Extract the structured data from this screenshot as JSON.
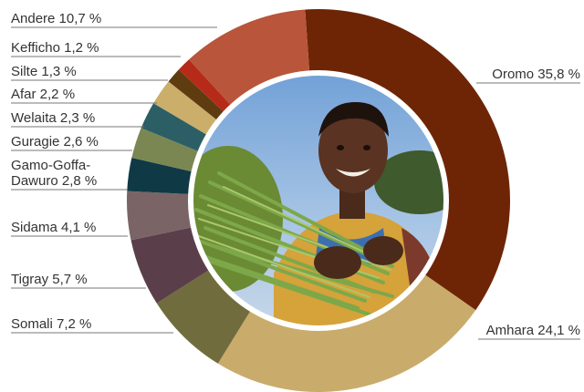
{
  "chart_data": {
    "type": "pie",
    "title": "",
    "categories": [
      "Oromo",
      "Amhara",
      "Somali",
      "Tigray",
      "Sidama",
      "Gamo-Goffa-Dawuro",
      "Guragie",
      "Welaita",
      "Afar",
      "Silte",
      "Kefficho",
      "Andere"
    ],
    "values": [
      35.8,
      24.1,
      7.2,
      5.7,
      4.1,
      2.8,
      2.6,
      2.3,
      2.2,
      1.3,
      1.2,
      10.7
    ],
    "labels": [
      "Oromo 35,8 %",
      "Amhara 24,1 %",
      "Somali 7,2 %",
      "Tigray 5,7 %",
      "Sidama 4,1 %",
      [
        "Gamo-Goffa-",
        "Dawuro 2,8 %"
      ],
      "Guragie 2,6 %",
      "Welaita 2,3 %",
      "Afar 2,2 %",
      "Silte 1,3 %",
      "Kefficho 1,2 %",
      "Andere 10,7 %"
    ],
    "colors": [
      "#6e2506",
      "#c9ab6b",
      "#716c3e",
      "#5a3f4a",
      "#7a6466",
      "#0f3a45",
      "#7b8752",
      "#2c5e66",
      "#cbae6a",
      "#5f3c10",
      "#b62a1a",
      "#b8553a"
    ],
    "center_image": "photo-boy-holding-green-stalks",
    "inner_ring_color": "#ffffff"
  }
}
